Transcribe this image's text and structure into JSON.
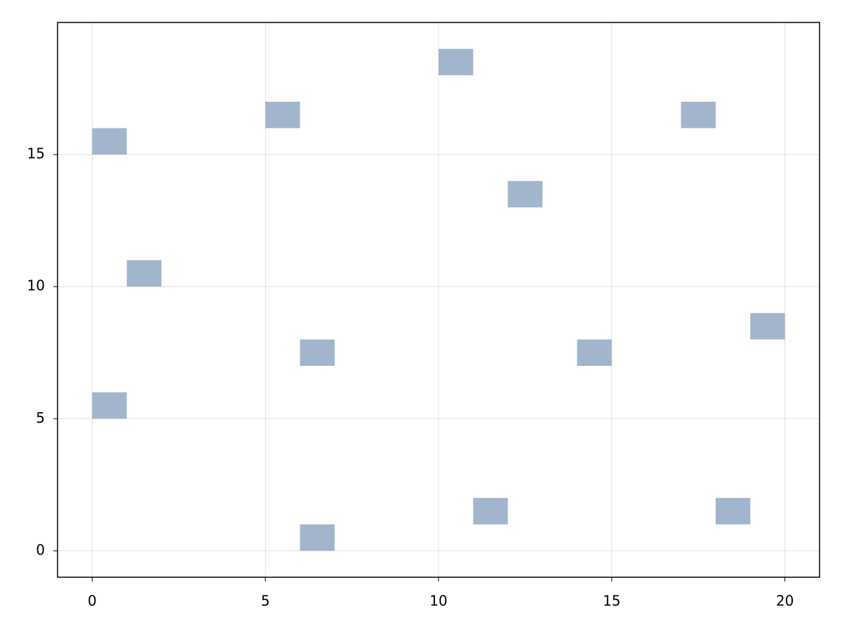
{
  "chart_data": {
    "type": "rect",
    "x": [
      0,
      5,
      10,
      17,
      12,
      1,
      6,
      14,
      19,
      0,
      11,
      18,
      6
    ],
    "y": [
      15,
      16,
      18,
      16,
      13,
      10,
      7,
      7,
      8,
      5,
      1,
      1,
      0
    ],
    "cell_width": 1,
    "cell_height": 1,
    "color": "#a2b5cd",
    "xlim": [
      -1,
      21
    ],
    "xticks": [
      0,
      5,
      10,
      15,
      20
    ],
    "ylim": [
      -1,
      20
    ],
    "yticks": [
      0,
      5,
      10,
      15
    ],
    "grid": true
  }
}
